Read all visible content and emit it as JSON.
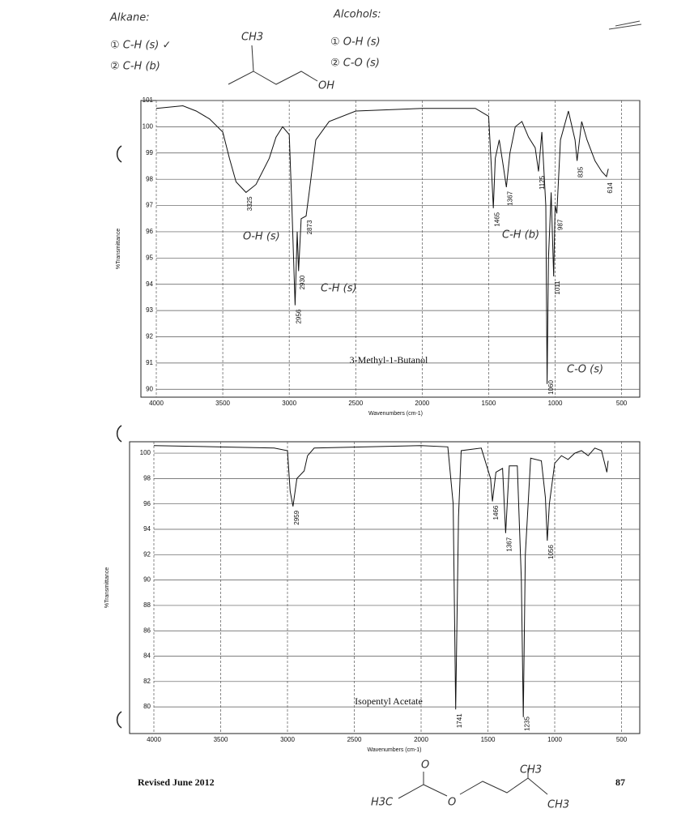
{
  "notes": {
    "alkane_title": "Alkane:",
    "alkane_1": "① C-H (s) ✓",
    "alkane_2": "② C-H (b)",
    "alcohol_title": "Alcohols:",
    "alcohol_1": "① O-H (s)",
    "alcohol_2": "② C-O (s)"
  },
  "structures": [
    "CH3",
    "OH",
    "H3C",
    "O",
    "O",
    "CH3",
    "CH3"
  ],
  "footer": {
    "revised": "Revised June 2012",
    "page": "87"
  },
  "chart_data": [
    {
      "type": "line",
      "title": "3-Methyl-1-Butanol",
      "x_label": "Wavenumbers (cm-1)",
      "y_label": "%Transmittance",
      "color": "#111",
      "x": [
        4000,
        3800,
        3700,
        3600,
        3500,
        3450,
        3400,
        3325,
        3250,
        3150,
        3100,
        3050,
        3000,
        2980,
        2956,
        2940,
        2930,
        2910,
        2873,
        2850,
        2800,
        2700,
        2500,
        2000,
        1600,
        1500,
        1480,
        1465,
        1450,
        1420,
        1390,
        1367,
        1340,
        1300,
        1250,
        1200,
        1150,
        1125,
        1100,
        1070,
        1060,
        1050,
        1030,
        1011,
        1000,
        987,
        960,
        900,
        850,
        835,
        800,
        760,
        700,
        650,
        614,
        600
      ],
      "values": [
        100.7,
        100.8,
        100.6,
        100.3,
        99.8,
        98.8,
        97.9,
        97.5,
        97.8,
        98.8,
        99.6,
        100.0,
        99.7,
        97,
        93.2,
        96,
        94.5,
        96.5,
        96.6,
        97.5,
        99.5,
        100.2,
        100.6,
        100.7,
        100.7,
        100.4,
        98.5,
        96.9,
        98.8,
        99.5,
        98.5,
        97.7,
        99.0,
        100.0,
        100.2,
        99.6,
        99.2,
        98.3,
        99.8,
        97.0,
        90.2,
        95,
        97.5,
        94.3,
        97,
        96.7,
        99.5,
        100.6,
        99.5,
        98.7,
        100.2,
        99.5,
        98.7,
        98.3,
        98.1,
        98.4
      ],
      "peaks": [
        3325,
        2956,
        2930,
        2873,
        1465,
        1367,
        1125,
        1060,
        1011,
        987,
        835,
        614
      ],
      "annotations": [
        "O-H (s)",
        "C-H (s)",
        "C-H (b)",
        "C-O (s)"
      ],
      "xlim": [
        4000,
        400
      ],
      "ylim": [
        89.7,
        101
      ],
      "xticks": [
        4000,
        3500,
        3000,
        2500,
        2000,
        1500,
        1000,
        500
      ],
      "yticks": [
        90,
        91,
        92,
        93,
        94,
        95,
        96,
        97,
        98,
        99,
        100,
        101
      ],
      "grid": true
    },
    {
      "type": "line",
      "title": "Isopentyl Acetate",
      "x_label": "Wavenumbers (cm-1)",
      "y_label": "%Transmittance",
      "color": "#111",
      "x": [
        4000,
        3100,
        3000,
        2980,
        2959,
        2930,
        2875,
        2850,
        2800,
        2000,
        1800,
        1760,
        1741,
        1720,
        1700,
        1550,
        1480,
        1466,
        1440,
        1390,
        1367,
        1340,
        1280,
        1250,
        1235,
        1220,
        1180,
        1100,
        1070,
        1056,
        1040,
        1000,
        950,
        900,
        850,
        800,
        750,
        700,
        650,
        610,
        600
      ],
      "values": [
        100.6,
        100.4,
        100.2,
        97,
        95.8,
        98,
        98.6,
        99.8,
        100.4,
        100.6,
        100.5,
        96,
        79.8,
        95,
        100.2,
        100.4,
        98,
        96.2,
        98.5,
        98.8,
        93.7,
        99,
        99,
        90,
        79.2,
        92,
        99.6,
        99.4,
        96.5,
        93.1,
        96,
        99.2,
        99.8,
        99.5,
        100.0,
        100.2,
        99.8,
        100.4,
        100.2,
        98.5,
        99.4
      ],
      "peaks": [
        2959,
        1741,
        1466,
        1367,
        1235,
        1056
      ],
      "annotations": [],
      "xlim": [
        4000,
        400
      ],
      "ylim": [
        77.9,
        100.9
      ],
      "xticks": [
        4000,
        3500,
        3000,
        2500,
        2000,
        1500,
        1000,
        500
      ],
      "yticks": [
        80,
        82,
        84,
        86,
        88,
        90,
        92,
        94,
        96,
        98,
        100
      ],
      "grid": true
    }
  ]
}
